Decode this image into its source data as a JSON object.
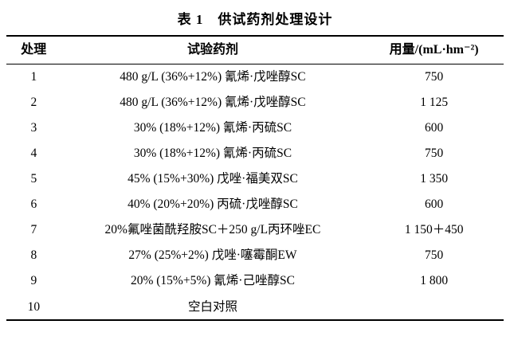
{
  "title": "表 1　供试药剂处理设计",
  "table": {
    "headers": {
      "treatment": "处理",
      "agent": "试验药剂",
      "dose": "用量/(mL·hm⁻²)"
    },
    "rows": [
      {
        "no": "1",
        "agent": "480 g/L (36%+12%) 氰烯·戊唑醇SC",
        "dose": "750"
      },
      {
        "no": "2",
        "agent": "480 g/L (36%+12%) 氰烯·戊唑醇SC",
        "dose": "1 125"
      },
      {
        "no": "3",
        "agent": "30% (18%+12%) 氰烯·丙硫SC",
        "dose": "600"
      },
      {
        "no": "4",
        "agent": "30% (18%+12%) 氰烯·丙硫SC",
        "dose": "750"
      },
      {
        "no": "5",
        "agent": "45% (15%+30%) 戊唑·福美双SC",
        "dose": "1 350"
      },
      {
        "no": "6",
        "agent": "40% (20%+20%) 丙硫·戊唑醇SC",
        "dose": "600"
      },
      {
        "no": "7",
        "agent": "20%氟唑菌酰羟胺SC＋250 g/L丙环唑EC",
        "dose": "1 150＋450"
      },
      {
        "no": "8",
        "agent": "27% (25%+2%) 戊唑·噻霉酮EW",
        "dose": "750"
      },
      {
        "no": "9",
        "agent": "20% (15%+5%) 氰烯·己唑醇SC",
        "dose": "1 800"
      },
      {
        "no": "10",
        "agent": "空白对照",
        "dose": ""
      }
    ]
  }
}
